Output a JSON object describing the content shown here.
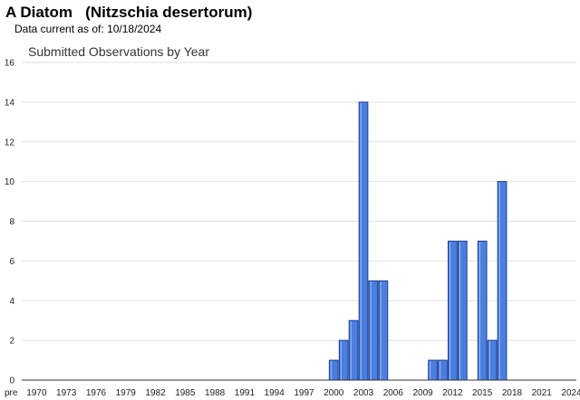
{
  "header": {
    "common_name": "A Diatom",
    "scientific_name": "(Nitzschia desertorum)",
    "data_current_label": "Data current as of:",
    "data_current_date": "10/18/2024"
  },
  "colors": {
    "bar_fill": "#4a7fe0",
    "bar_edge": "#1f3f8f",
    "grid": "#e2e2e2"
  },
  "chart_data": {
    "type": "bar",
    "title": "Submitted Observations by Year",
    "xlabel": "",
    "ylabel": "",
    "ylim": [
      0,
      16
    ],
    "yticks": [
      0,
      2,
      4,
      6,
      8,
      10,
      12,
      14,
      16
    ],
    "grid": true,
    "categories": [
      "pre",
      "1970",
      "1971",
      "1972",
      "1973",
      "1974",
      "1975",
      "1976",
      "1977",
      "1978",
      "1979",
      "1980",
      "1981",
      "1982",
      "1983",
      "1984",
      "1985",
      "1986",
      "1987",
      "1988",
      "1989",
      "1990",
      "1991",
      "1992",
      "1993",
      "1994",
      "1995",
      "1996",
      "1997",
      "1998",
      "1999",
      "2000",
      "2001",
      "2002",
      "2003",
      "2004",
      "2005",
      "2006",
      "2007",
      "2008",
      "2009",
      "2010",
      "2011",
      "2012",
      "2013",
      "2014",
      "2015",
      "2016",
      "2017",
      "2018",
      "2019",
      "2020",
      "2021",
      "2022",
      "2023",
      "2024"
    ],
    "xtick_labels": [
      "pre",
      "1970",
      "1973",
      "1976",
      "1979",
      "1982",
      "1985",
      "1988",
      "1991",
      "1994",
      "1997",
      "2000",
      "2003",
      "2006",
      "2009",
      "2012",
      "2015",
      "2018",
      "2021",
      "2024"
    ],
    "values": [
      0,
      0,
      0,
      0,
      0,
      0,
      0,
      0,
      0,
      0,
      0,
      0,
      0,
      0,
      0,
      0,
      0,
      0,
      0,
      0,
      0,
      0,
      0,
      0,
      0,
      0,
      0,
      0,
      0,
      0,
      0,
      1,
      2,
      3,
      14,
      5,
      5,
      0,
      0,
      0,
      0,
      1,
      1,
      7,
      7,
      0,
      7,
      2,
      10,
      0,
      0,
      0,
      0,
      0,
      0,
      0
    ]
  }
}
